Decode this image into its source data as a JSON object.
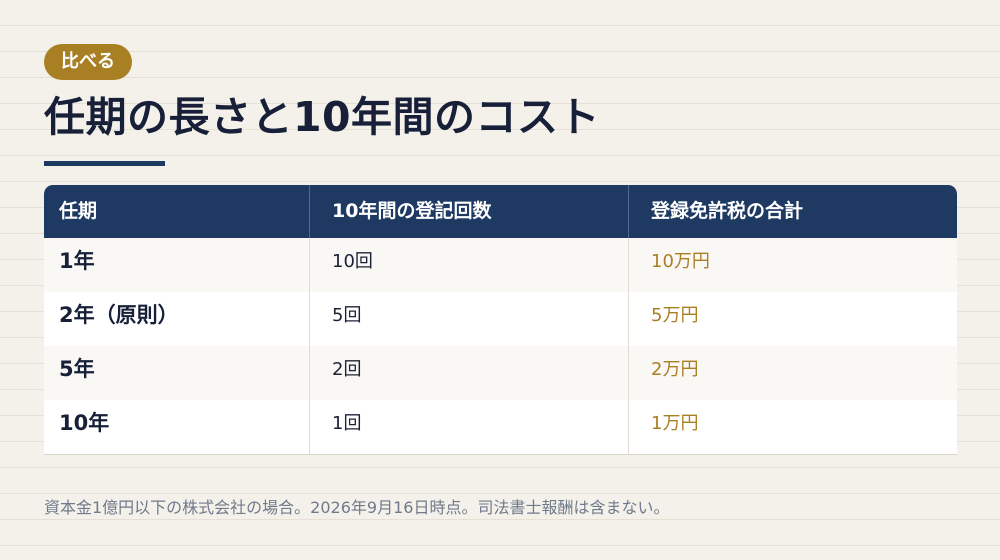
{
  "badge": "比べる",
  "title": "任期の長さと10年間のコスト",
  "table": {
    "headers": [
      "任期",
      "10年間の登記回数",
      "登録免許税の合計"
    ],
    "rows": [
      {
        "term": "1年",
        "count": "10回",
        "cost": "10万円"
      },
      {
        "term": "2年（原則）",
        "count": "5回",
        "cost": "5万円"
      },
      {
        "term": "5年",
        "count": "2回",
        "cost": "2万円"
      },
      {
        "term": "10年",
        "count": "1回",
        "cost": "1万円"
      }
    ]
  },
  "note": "資本金1億円以下の株式会社の場合。2026年9月16日時点。司法書士報酬は含まない。",
  "colors": {
    "accent": "#a97f24",
    "header_navy": "#1e3a63",
    "title_text": "#172038",
    "background": "#f4f1ea"
  }
}
